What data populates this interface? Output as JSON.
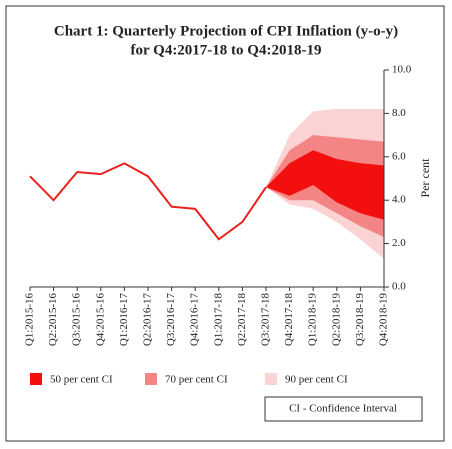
{
  "chart_data": {
    "type": "fan",
    "title": "Chart 1: Quarterly Projection of CPI Inflation (y-o-y)",
    "subtitle": "for Q4:2017-18 to Q4:2018-19",
    "y_label": "Per cent",
    "categories": [
      "Q1:2015-16",
      "Q2:2015-16",
      "Q3:2015-16",
      "Q4:2015-16",
      "Q1:2016-17",
      "Q2:2016-17",
      "Q3:2016-17",
      "Q4:2016-17",
      "Q1:2017-18",
      "Q2:2017-18",
      "Q3:2017-18",
      "Q4:2017-18",
      "Q1:2018-19",
      "Q2:2018-19",
      "Q3:2018-19",
      "Q4:2018-19"
    ],
    "line": {
      "color": "#e8211e",
      "values": [
        5.1,
        4.0,
        5.3,
        5.2,
        5.7,
        5.1,
        3.7,
        3.6,
        2.2,
        3.0,
        4.6,
        null,
        null,
        null,
        null,
        null
      ]
    },
    "series": [
      {
        "name": "90 per cent CI",
        "color": "#fcd3d3",
        "lower": [
          null,
          null,
          null,
          null,
          null,
          null,
          null,
          null,
          null,
          null,
          4.6,
          3.8,
          3.6,
          3.0,
          2.2,
          1.3
        ],
        "upper": [
          null,
          null,
          null,
          null,
          null,
          null,
          null,
          null,
          null,
          null,
          4.6,
          7.0,
          8.1,
          8.2,
          8.2,
          8.2
        ]
      },
      {
        "name": "70 per cent CI",
        "color": "#f48585",
        "lower": [
          null,
          null,
          null,
          null,
          null,
          null,
          null,
          null,
          null,
          null,
          4.6,
          4.0,
          4.0,
          3.4,
          2.8,
          2.3
        ],
        "upper": [
          null,
          null,
          null,
          null,
          null,
          null,
          null,
          null,
          null,
          null,
          4.6,
          6.3,
          7.0,
          6.9,
          6.8,
          6.7
        ]
      },
      {
        "name": "50 per cent CI",
        "color": "#f40f0f",
        "lower": [
          null,
          null,
          null,
          null,
          null,
          null,
          null,
          null,
          null,
          null,
          4.6,
          4.2,
          4.7,
          3.9,
          3.4,
          3.1
        ],
        "upper": [
          null,
          null,
          null,
          null,
          null,
          null,
          null,
          null,
          null,
          null,
          4.6,
          5.7,
          6.3,
          5.9,
          5.7,
          5.6
        ]
      }
    ],
    "legend_order": [
      2,
      1,
      0
    ],
    "ylim": [
      0,
      10
    ],
    "yticks": [
      {
        "value": 0,
        "label": "0.0"
      },
      {
        "value": 2,
        "label": "2.0"
      },
      {
        "value": 4,
        "label": "4.0"
      },
      {
        "value": 6,
        "label": "6.0"
      },
      {
        "value": 8,
        "label": "8.0"
      },
      {
        "value": 10,
        "label": "10.0"
      }
    ],
    "note": "CI - Confidence Interval"
  }
}
